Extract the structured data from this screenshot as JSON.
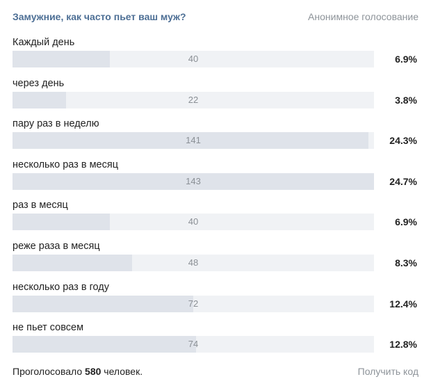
{
  "poll": {
    "question": "Замужние, как часто пьет ваш муж?",
    "type_label": "Анонимное голосование",
    "options": [
      {
        "label": "Каждый день",
        "votes": "40",
        "percent": "6.9%",
        "fill_fraction": 0.269
      },
      {
        "label": "через день",
        "votes": "22",
        "percent": "3.8%",
        "fill_fraction": 0.148
      },
      {
        "label": "пару раз в неделю",
        "votes": "141",
        "percent": "24.3%",
        "fill_fraction": 0.985
      },
      {
        "label": "несколько раз в месяц",
        "votes": "143",
        "percent": "24.7%",
        "fill_fraction": 1.0
      },
      {
        "label": "раз в месяц",
        "votes": "40",
        "percent": "6.9%",
        "fill_fraction": 0.269
      },
      {
        "label": "реже раза в месяц",
        "votes": "48",
        "percent": "8.3%",
        "fill_fraction": 0.33
      },
      {
        "label": "несколько раз в году",
        "votes": "72",
        "percent": "12.4%",
        "fill_fraction": 0.5
      },
      {
        "label": "не пьет совсем",
        "votes": "74",
        "percent": "12.8%",
        "fill_fraction": 0.508
      }
    ],
    "footer": {
      "voted_prefix": "Проголосовало",
      "voted_count": "580",
      "voted_suffix": "человек.",
      "get_code_label": "Получить код"
    },
    "colors": {
      "question": "#4d6f95",
      "bar_track": "#f0f2f5",
      "bar_fill": "#dfe3ea",
      "muted_text": "#8d9399"
    }
  }
}
